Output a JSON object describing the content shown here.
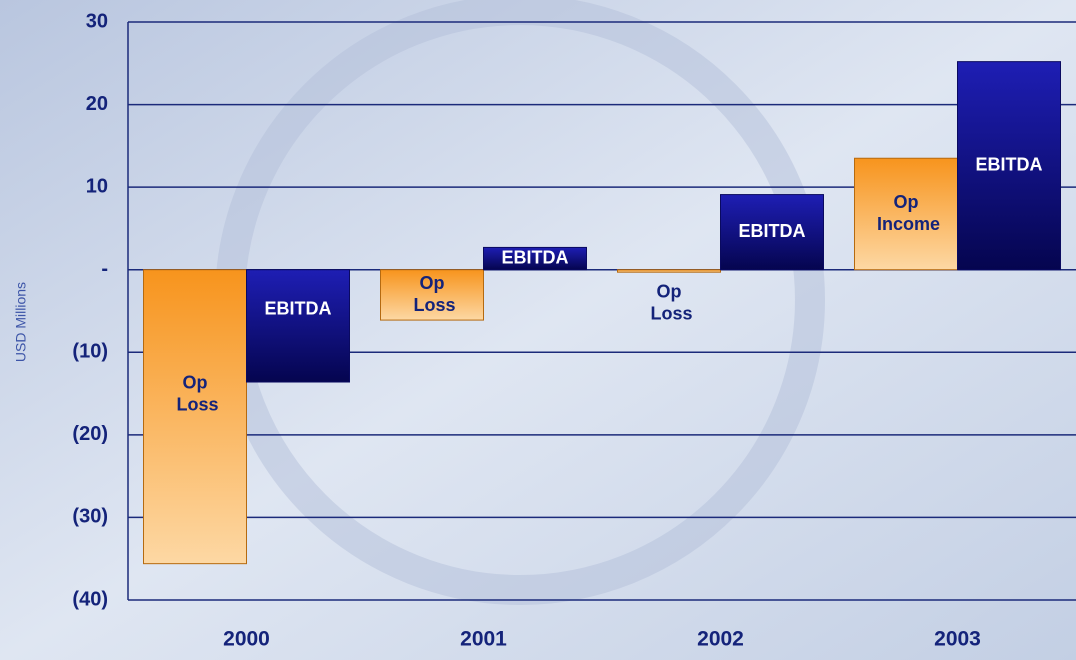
{
  "chart_data": {
    "type": "bar",
    "y_axis_label": "USD Millions",
    "categories": [
      "2000",
      "2001",
      "2002",
      "2003"
    ],
    "series": [
      {
        "color": "#f7941d",
        "values": [
          -35.6,
          -6.1,
          -0.3,
          13.5
        ],
        "labels": [
          "Op Loss",
          "Op Loss",
          "Op Loss",
          "Op Income"
        ]
      },
      {
        "color": "#14149a",
        "values": [
          -13.6,
          2.7,
          9.1,
          25.2
        ],
        "labels": [
          "EBITDA",
          "EBITDA",
          "EBITDA",
          "EBITDA"
        ]
      }
    ],
    "ylim": [
      -40,
      30
    ],
    "yticks": [
      {
        "value": -40,
        "label": "(40)"
      },
      {
        "value": -30,
        "label": "(30)"
      },
      {
        "value": -20,
        "label": "(20)"
      },
      {
        "value": -10,
        "label": "(10)"
      },
      {
        "value": 0,
        "label": "-"
      },
      10,
      20,
      30
    ],
    "grid": true
  }
}
